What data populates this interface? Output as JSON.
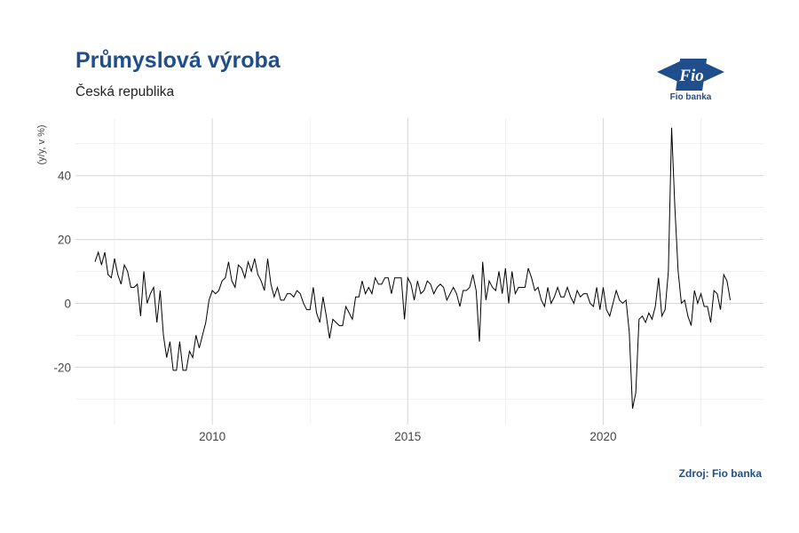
{
  "header": {
    "title": "Průmyslová výroba",
    "subtitle": "Česká republika",
    "source": "Zdroj: Fio banka",
    "logo_text": "Fio banka",
    "logo_mark": "Fio",
    "accent_color": "#1f4e8c"
  },
  "chart_data": {
    "type": "line",
    "title": "Průmyslová výroba",
    "subtitle": "Česká republika",
    "xlabel": "",
    "ylabel": "(y/y, v %)",
    "x_ticks": [
      "2010",
      "2015",
      "2020"
    ],
    "y_ticks": [
      "-20",
      "0",
      "20",
      "40"
    ],
    "xlim": [
      2006.5,
      2024.1
    ],
    "ylim": [
      -38,
      58
    ],
    "grid": true,
    "line_color": "#000000",
    "series": [
      {
        "x_start": 2007.0,
        "x_step": 0.0833333,
        "values": [
          13,
          16,
          12,
          16,
          9,
          8,
          14,
          9,
          6,
          12,
          10,
          5,
          5,
          6,
          -4,
          10,
          0,
          3,
          5,
          -6,
          4,
          -10,
          -17,
          -12,
          -21,
          -21,
          -12,
          -21,
          -21,
          -15,
          -17,
          -10,
          -14,
          -10,
          -6,
          1,
          4,
          3,
          4,
          7,
          8,
          13,
          7,
          5,
          12,
          11,
          8,
          13,
          10,
          14,
          9,
          7,
          4,
          14,
          6,
          2,
          5,
          1,
          1,
          3,
          3,
          2,
          4,
          3,
          0,
          -2,
          -2,
          5,
          -3,
          -6,
          2,
          -4,
          -11,
          -5,
          -6,
          -7,
          -7,
          -1,
          -3,
          -5,
          2,
          2,
          7,
          3,
          5,
          3,
          8,
          6,
          6,
          8,
          8,
          3,
          8,
          8,
          8,
          -5,
          8,
          6,
          1,
          7,
          3,
          4,
          7,
          6,
          3,
          5,
          6,
          5,
          1,
          3,
          5,
          3,
          -1,
          4,
          4,
          5,
          9,
          4,
          -12,
          13,
          1,
          7,
          5,
          4,
          10,
          3,
          11,
          0,
          10,
          3,
          5,
          5,
          5,
          11,
          8,
          4,
          5,
          1,
          -1,
          5,
          0,
          2,
          5,
          2,
          2,
          5,
          2,
          0,
          4,
          2,
          3,
          3,
          0,
          -1,
          5,
          -2,
          5,
          -2,
          -4,
          0,
          4,
          1,
          0,
          1,
          -9,
          -33,
          -28,
          -5,
          -4,
          -6,
          -3,
          -5,
          -1,
          8,
          -4,
          -2,
          10,
          55,
          30,
          10,
          0,
          1,
          -4,
          -7,
          4,
          0,
          3,
          -1,
          -1,
          -6,
          4,
          3,
          -2,
          9,
          7,
          1
        ]
      }
    ]
  }
}
